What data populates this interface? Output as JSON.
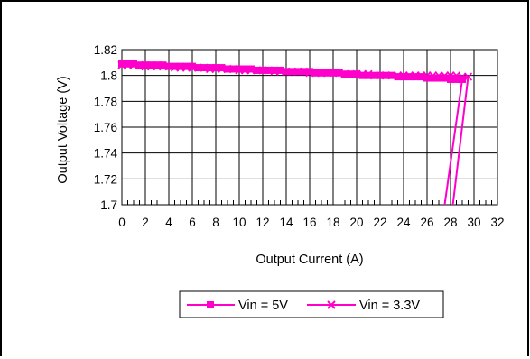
{
  "chart_data": {
    "type": "line",
    "title": "",
    "xlabel": "Output Current (A)",
    "ylabel": "Output Voltage (V)",
    "xlim": [
      0,
      32
    ],
    "ylim": [
      1.7,
      1.82
    ],
    "x_ticks": [
      "0",
      "2",
      "4",
      "6",
      "8",
      "10",
      "12",
      "14",
      "16",
      "18",
      "20",
      "22",
      "24",
      "26",
      "28",
      "30",
      "32"
    ],
    "y_ticks": [
      "1.82",
      "1.8",
      "1.78",
      "1.76",
      "1.74",
      "1.72",
      "1.7"
    ],
    "grid": true,
    "legend_position": "bottom",
    "series": [
      {
        "name": "Vin = 5V",
        "marker": "square",
        "color": "#ff00cc",
        "x": [
          0,
          0.5,
          1,
          1.5,
          2,
          2.5,
          3,
          3.5,
          4,
          4.5,
          5,
          5.5,
          6,
          6.5,
          7,
          7.5,
          8,
          8.5,
          9,
          9.5,
          10,
          10.5,
          11,
          11.5,
          12,
          12.5,
          13,
          13.5,
          14,
          14.5,
          15,
          15.5,
          16,
          16.5,
          17,
          17.5,
          18,
          18.5,
          19,
          19.5,
          20,
          20.5,
          21,
          21.5,
          22,
          22.5,
          23,
          23.5,
          24,
          24.5,
          25,
          25.5,
          26,
          26.5,
          27,
          27.5,
          28,
          28.5,
          29,
          27.5
        ],
        "y": [
          1.809,
          1.809,
          1.809,
          1.808,
          1.808,
          1.808,
          1.808,
          1.808,
          1.807,
          1.807,
          1.807,
          1.807,
          1.807,
          1.806,
          1.806,
          1.806,
          1.806,
          1.806,
          1.805,
          1.805,
          1.805,
          1.805,
          1.805,
          1.804,
          1.804,
          1.804,
          1.804,
          1.804,
          1.803,
          1.803,
          1.803,
          1.803,
          1.803,
          1.802,
          1.802,
          1.802,
          1.802,
          1.802,
          1.801,
          1.801,
          1.801,
          1.8,
          1.8,
          1.8,
          1.8,
          1.8,
          1.8,
          1.799,
          1.799,
          1.799,
          1.799,
          1.799,
          1.798,
          1.798,
          1.798,
          1.798,
          1.797,
          1.797,
          1.797,
          1.7
        ]
      },
      {
        "name": "Vin = 3.3V",
        "marker": "x",
        "color": "#ff00cc",
        "x": [
          0,
          0.5,
          1,
          1.5,
          2,
          2.5,
          3,
          3.5,
          4,
          4.5,
          5,
          5.5,
          6,
          6.5,
          7,
          7.5,
          8,
          8.5,
          9,
          9.5,
          10,
          10.5,
          11,
          11.5,
          12,
          12.5,
          13,
          13.5,
          14,
          14.5,
          15,
          15.5,
          16,
          16.5,
          17,
          17.5,
          18,
          18.5,
          19,
          19.5,
          20,
          20.5,
          21,
          21.5,
          22,
          22.5,
          23,
          23.5,
          24,
          24.5,
          25,
          25.5,
          26,
          26.5,
          27,
          27.5,
          28,
          28.5,
          29,
          29.5,
          28.2
        ],
        "y": [
          1.808,
          1.808,
          1.808,
          1.808,
          1.807,
          1.807,
          1.807,
          1.807,
          1.807,
          1.806,
          1.806,
          1.806,
          1.806,
          1.806,
          1.806,
          1.805,
          1.805,
          1.805,
          1.805,
          1.805,
          1.804,
          1.804,
          1.804,
          1.804,
          1.804,
          1.804,
          1.803,
          1.803,
          1.803,
          1.803,
          1.803,
          1.803,
          1.802,
          1.802,
          1.802,
          1.802,
          1.802,
          1.802,
          1.801,
          1.801,
          1.801,
          1.801,
          1.801,
          1.8,
          1.8,
          1.8,
          1.8,
          1.8,
          1.8,
          1.8,
          1.8,
          1.8,
          1.8,
          1.8,
          1.8,
          1.8,
          1.8,
          1.8,
          1.799,
          1.799,
          1.7
        ]
      }
    ]
  }
}
